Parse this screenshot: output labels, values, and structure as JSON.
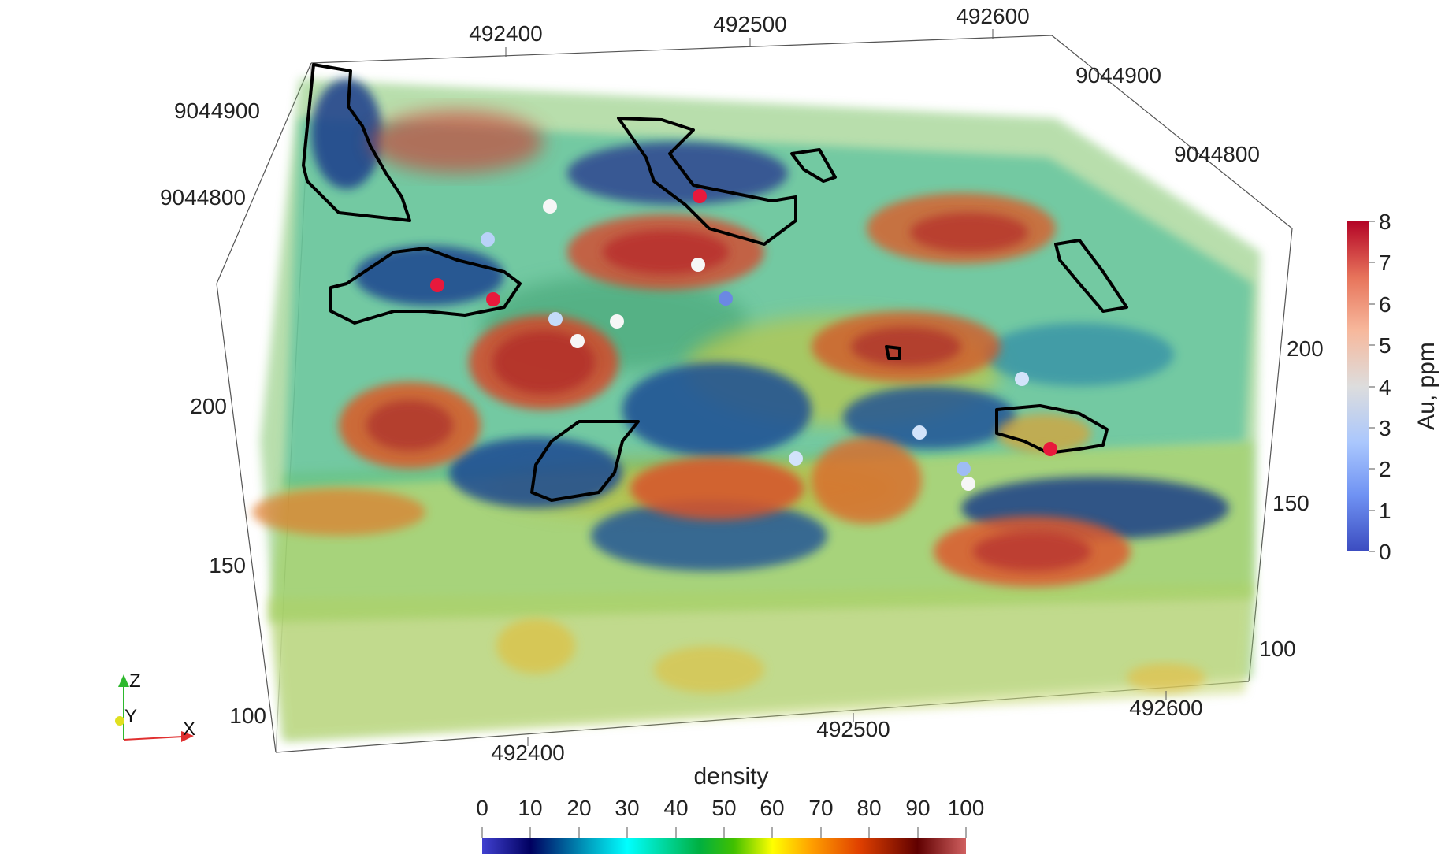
{
  "scene": {
    "top_x_ticks": [
      "492400",
      "492500",
      "492600"
    ],
    "bottom_x_ticks": [
      "492400",
      "492500",
      "492600"
    ],
    "left_y_ticks": [
      "9044900",
      "9044800"
    ],
    "right_y_ticks": [
      "9044900",
      "9044800"
    ],
    "left_z_ticks": [
      "200",
      "150",
      "100"
    ],
    "right_z_ticks": [
      "200",
      "150",
      "100"
    ]
  },
  "colorbars": {
    "au": {
      "title": "Au, ppm",
      "ticks": [
        "8",
        "7",
        "6",
        "5",
        "4",
        "3",
        "2",
        "1",
        "0"
      ],
      "colors": [
        "#3b4cc0",
        "#6f92f3",
        "#aac7fd",
        "#dddddd",
        "#f7b89c",
        "#e7745b",
        "#b40426"
      ]
    },
    "density": {
      "title": "density",
      "ticks": [
        "0",
        "10",
        "20",
        "30",
        "40",
        "50",
        "60",
        "70",
        "80",
        "90",
        "100"
      ],
      "colors": [
        "#4040d0",
        "#000060",
        "#00a0c0",
        "#00ffff",
        "#00b040",
        "#40c000",
        "#ffff00",
        "#ffa000",
        "#e04000",
        "#600000",
        "#d06060"
      ]
    }
  },
  "axes_triad": {
    "x_label": "X",
    "y_label": "Y",
    "z_label": "Z"
  }
}
